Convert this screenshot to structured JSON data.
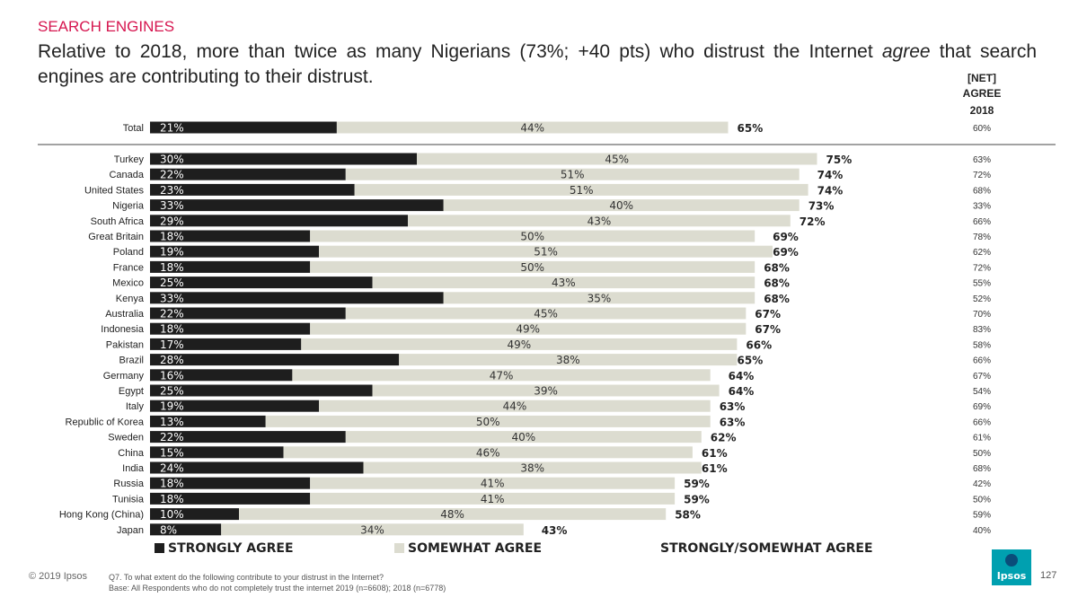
{
  "header": {
    "section": "SEARCH ENGINES",
    "headline_part1": "Relative to 2018, more than twice as many Nigerians (73%; +40 pts) who distrust the Internet ",
    "headline_em": "agree",
    "headline_part2": " that search engines are contributing to their distrust."
  },
  "column_header": {
    "line1": "[NET]",
    "line2": "AGREE",
    "line3": "2018"
  },
  "footer": {
    "copyright": "© 2019 Ipsos",
    "question": "Q7.  To what extent do the following contribute to your distrust in the Internet?",
    "base": "Base: All Respondents who do not completely trust the internet 2019 (n=6608); 2018 (n=6778)",
    "logo": "Ipsos",
    "page": "127"
  },
  "colors": {
    "strongly": "#1e1e1e",
    "somewhat": "#dcdcd0",
    "accent": "#d6154f",
    "logo": "#00a0b0"
  },
  "chart_data": {
    "type": "bar",
    "stacked": true,
    "orientation": "horizontal",
    "categories": [
      "Total",
      "Turkey",
      "Canada",
      "United States",
      "Nigeria",
      "South Africa",
      "Great Britain",
      "Poland",
      "France",
      "Mexico",
      "Kenya",
      "Australia",
      "Indonesia",
      "Pakistan",
      "Brazil",
      "Germany",
      "Egypt",
      "Italy",
      "Republic of Korea",
      "Sweden",
      "China",
      "India",
      "Russia",
      "Tunisia",
      "Hong Kong (China)",
      "Japan"
    ],
    "series": [
      {
        "name": "STRONGLY AGREE",
        "values": [
          21,
          30,
          22,
          23,
          33,
          29,
          18,
          19,
          18,
          25,
          33,
          22,
          18,
          17,
          28,
          16,
          25,
          19,
          13,
          22,
          15,
          24,
          18,
          18,
          10,
          8
        ]
      },
      {
        "name": "SOMEWHAT AGREE",
        "values": [
          44,
          45,
          51,
          51,
          40,
          43,
          50,
          51,
          50,
          43,
          35,
          45,
          49,
          49,
          38,
          47,
          39,
          44,
          50,
          40,
          46,
          38,
          41,
          41,
          48,
          34
        ]
      }
    ],
    "totals_label": "STRONGLY/SOMEWHAT AGREE",
    "totals": [
      65,
      75,
      74,
      74,
      73,
      72,
      69,
      69,
      68,
      68,
      68,
      67,
      67,
      66,
      65,
      64,
      64,
      63,
      63,
      62,
      61,
      61,
      59,
      59,
      58,
      43
    ],
    "net_agree_2018": [
      "60%",
      "63%",
      "72%",
      "68%",
      "33%",
      "66%",
      "78%",
      "62%",
      "72%",
      "55%",
      "52%",
      "70%",
      "83%",
      "58%",
      "66%",
      "67%",
      "54%",
      "69%",
      "66%",
      "61%",
      "50%",
      "68%",
      "42%",
      "50%",
      "59%",
      "40%"
    ],
    "xlim": [
      0,
      75
    ]
  }
}
